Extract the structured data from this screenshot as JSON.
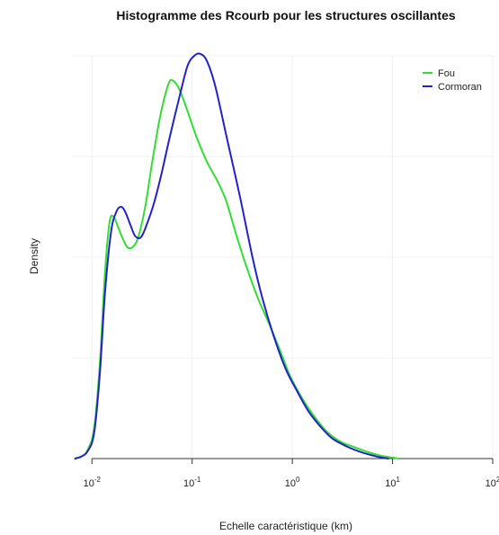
{
  "chart_data": {
    "type": "line",
    "title": "Histogramme des Rcourb pour les structures oscillantes",
    "xlabel": "Echelle caractéristique (km)",
    "ylabel": "Density",
    "x_scale": "log10",
    "xlim": [
      0.00631,
      100
    ],
    "ylim": [
      0,
      4.0
    ],
    "x_ticks": [
      {
        "base": "10",
        "exp": "-2",
        "value": 0.01
      },
      {
        "base": "10",
        "exp": "-1",
        "value": 0.1
      },
      {
        "base": "10",
        "exp": "0",
        "value": 1
      },
      {
        "base": "10",
        "exp": "1",
        "value": 10
      },
      {
        "base": "10",
        "exp": "2",
        "value": 100
      }
    ],
    "legend": {
      "position": "top-right"
    },
    "grid": true,
    "series": [
      {
        "name": "Fou",
        "color": "#33dd33",
        "points": [
          [
            0.0068,
            0.0
          ],
          [
            0.0078,
            0.02
          ],
          [
            0.009,
            0.08
          ],
          [
            0.0105,
            0.3
          ],
          [
            0.012,
            0.95
          ],
          [
            0.0135,
            1.85
          ],
          [
            0.015,
            2.35
          ],
          [
            0.0165,
            2.4
          ],
          [
            0.0182,
            2.3
          ],
          [
            0.02,
            2.2
          ],
          [
            0.0225,
            2.1
          ],
          [
            0.0255,
            2.1
          ],
          [
            0.029,
            2.2
          ],
          [
            0.034,
            2.5
          ],
          [
            0.04,
            2.95
          ],
          [
            0.048,
            3.4
          ],
          [
            0.058,
            3.72
          ],
          [
            0.065,
            3.75
          ],
          [
            0.075,
            3.66
          ],
          [
            0.09,
            3.45
          ],
          [
            0.11,
            3.2
          ],
          [
            0.14,
            2.95
          ],
          [
            0.18,
            2.75
          ],
          [
            0.22,
            2.55
          ],
          [
            0.28,
            2.2
          ],
          [
            0.35,
            1.9
          ],
          [
            0.45,
            1.6
          ],
          [
            0.58,
            1.35
          ],
          [
            0.75,
            1.08
          ],
          [
            0.95,
            0.82
          ],
          [
            1.25,
            0.6
          ],
          [
            1.65,
            0.42
          ],
          [
            2.2,
            0.27
          ],
          [
            3.0,
            0.17
          ],
          [
            4.0,
            0.12
          ],
          [
            5.5,
            0.07
          ],
          [
            7.5,
            0.03
          ],
          [
            10.0,
            0.01
          ],
          [
            11.5,
            0.0
          ]
        ]
      },
      {
        "name": "Cormoran",
        "color": "#2222cc",
        "points": [
          [
            0.0068,
            0.0
          ],
          [
            0.0078,
            0.02
          ],
          [
            0.009,
            0.07
          ],
          [
            0.0105,
            0.25
          ],
          [
            0.012,
            0.85
          ],
          [
            0.0135,
            1.65
          ],
          [
            0.0155,
            2.25
          ],
          [
            0.0175,
            2.45
          ],
          [
            0.0195,
            2.5
          ],
          [
            0.0215,
            2.45
          ],
          [
            0.024,
            2.33
          ],
          [
            0.027,
            2.21
          ],
          [
            0.031,
            2.2
          ],
          [
            0.036,
            2.35
          ],
          [
            0.042,
            2.55
          ],
          [
            0.05,
            2.85
          ],
          [
            0.06,
            3.2
          ],
          [
            0.075,
            3.6
          ],
          [
            0.09,
            3.9
          ],
          [
            0.105,
            4.0
          ],
          [
            0.12,
            4.02
          ],
          [
            0.14,
            3.95
          ],
          [
            0.17,
            3.7
          ],
          [
            0.22,
            3.2
          ],
          [
            0.3,
            2.6
          ],
          [
            0.4,
            2.0
          ],
          [
            0.5,
            1.6
          ],
          [
            0.65,
            1.22
          ],
          [
            0.85,
            0.9
          ],
          [
            1.1,
            0.68
          ],
          [
            1.45,
            0.47
          ],
          [
            1.9,
            0.32
          ],
          [
            2.5,
            0.2
          ],
          [
            3.5,
            0.12
          ],
          [
            5.0,
            0.06
          ],
          [
            7.0,
            0.02
          ],
          [
            9.0,
            0.0
          ]
        ]
      }
    ]
  }
}
